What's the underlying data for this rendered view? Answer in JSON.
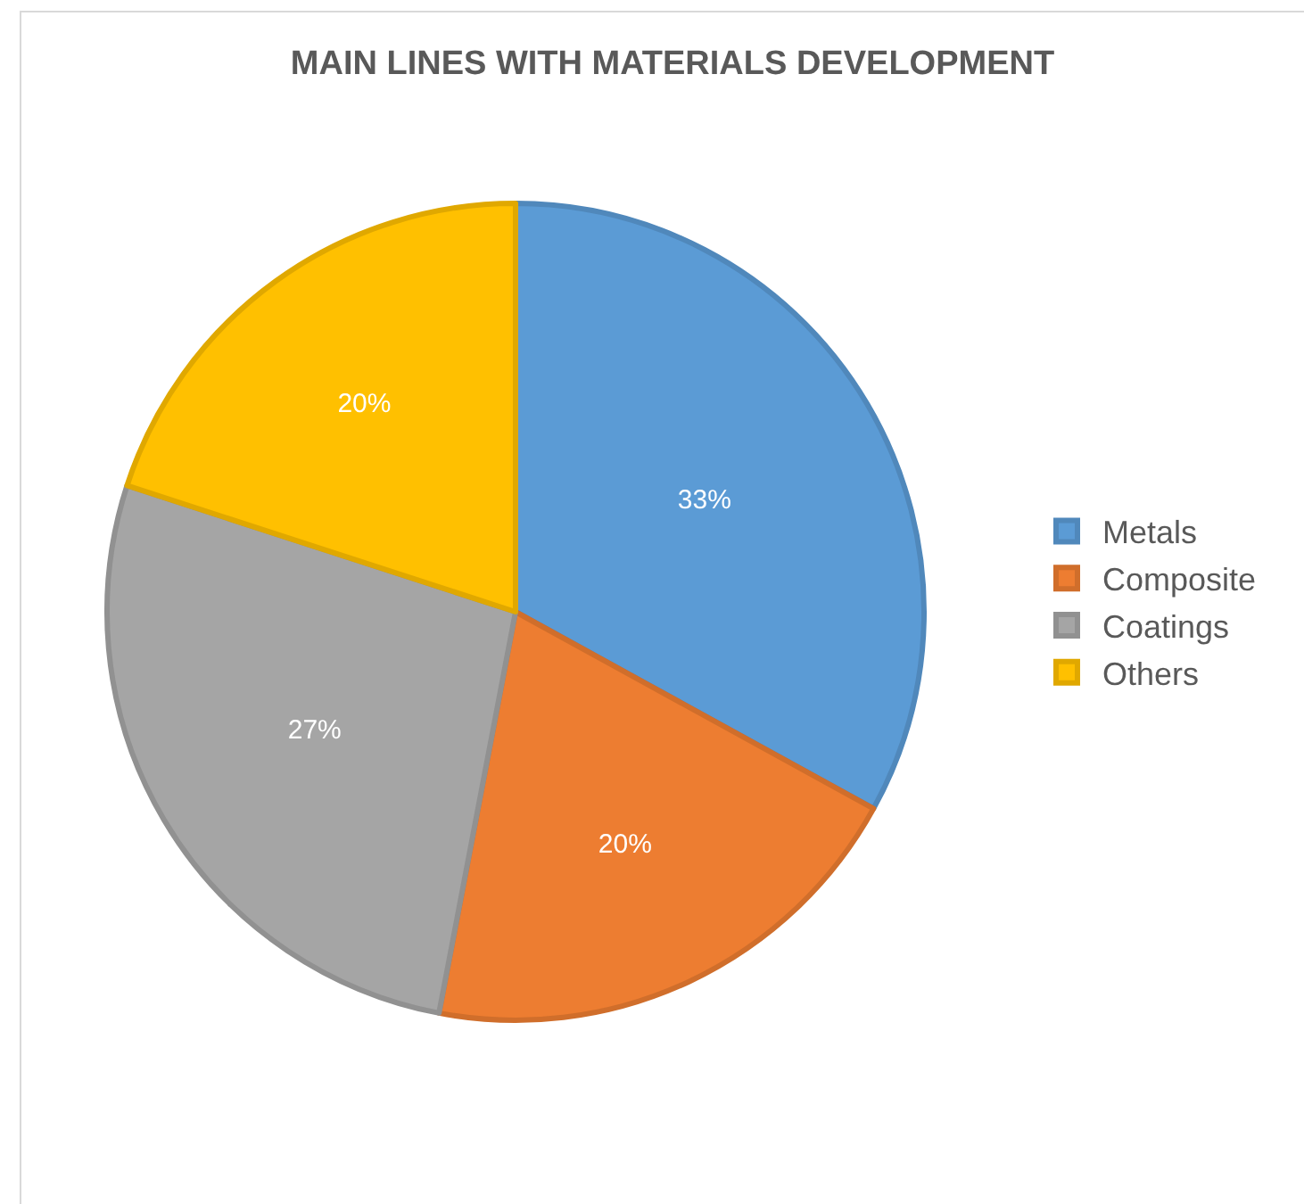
{
  "chart_data": {
    "type": "pie",
    "title": "MAIN LINES WITH MATERIALS DEVELOPMENT",
    "categories": [
      "Metals",
      "Composite",
      "Coatings",
      "Others"
    ],
    "values": [
      33,
      20,
      27,
      20
    ],
    "value_labels": [
      "33%",
      "20%",
      "27%",
      "20%"
    ],
    "colors": [
      "#5b9bd5",
      "#ed7d31",
      "#a5a5a5",
      "#ffc000"
    ],
    "legend": "right"
  }
}
